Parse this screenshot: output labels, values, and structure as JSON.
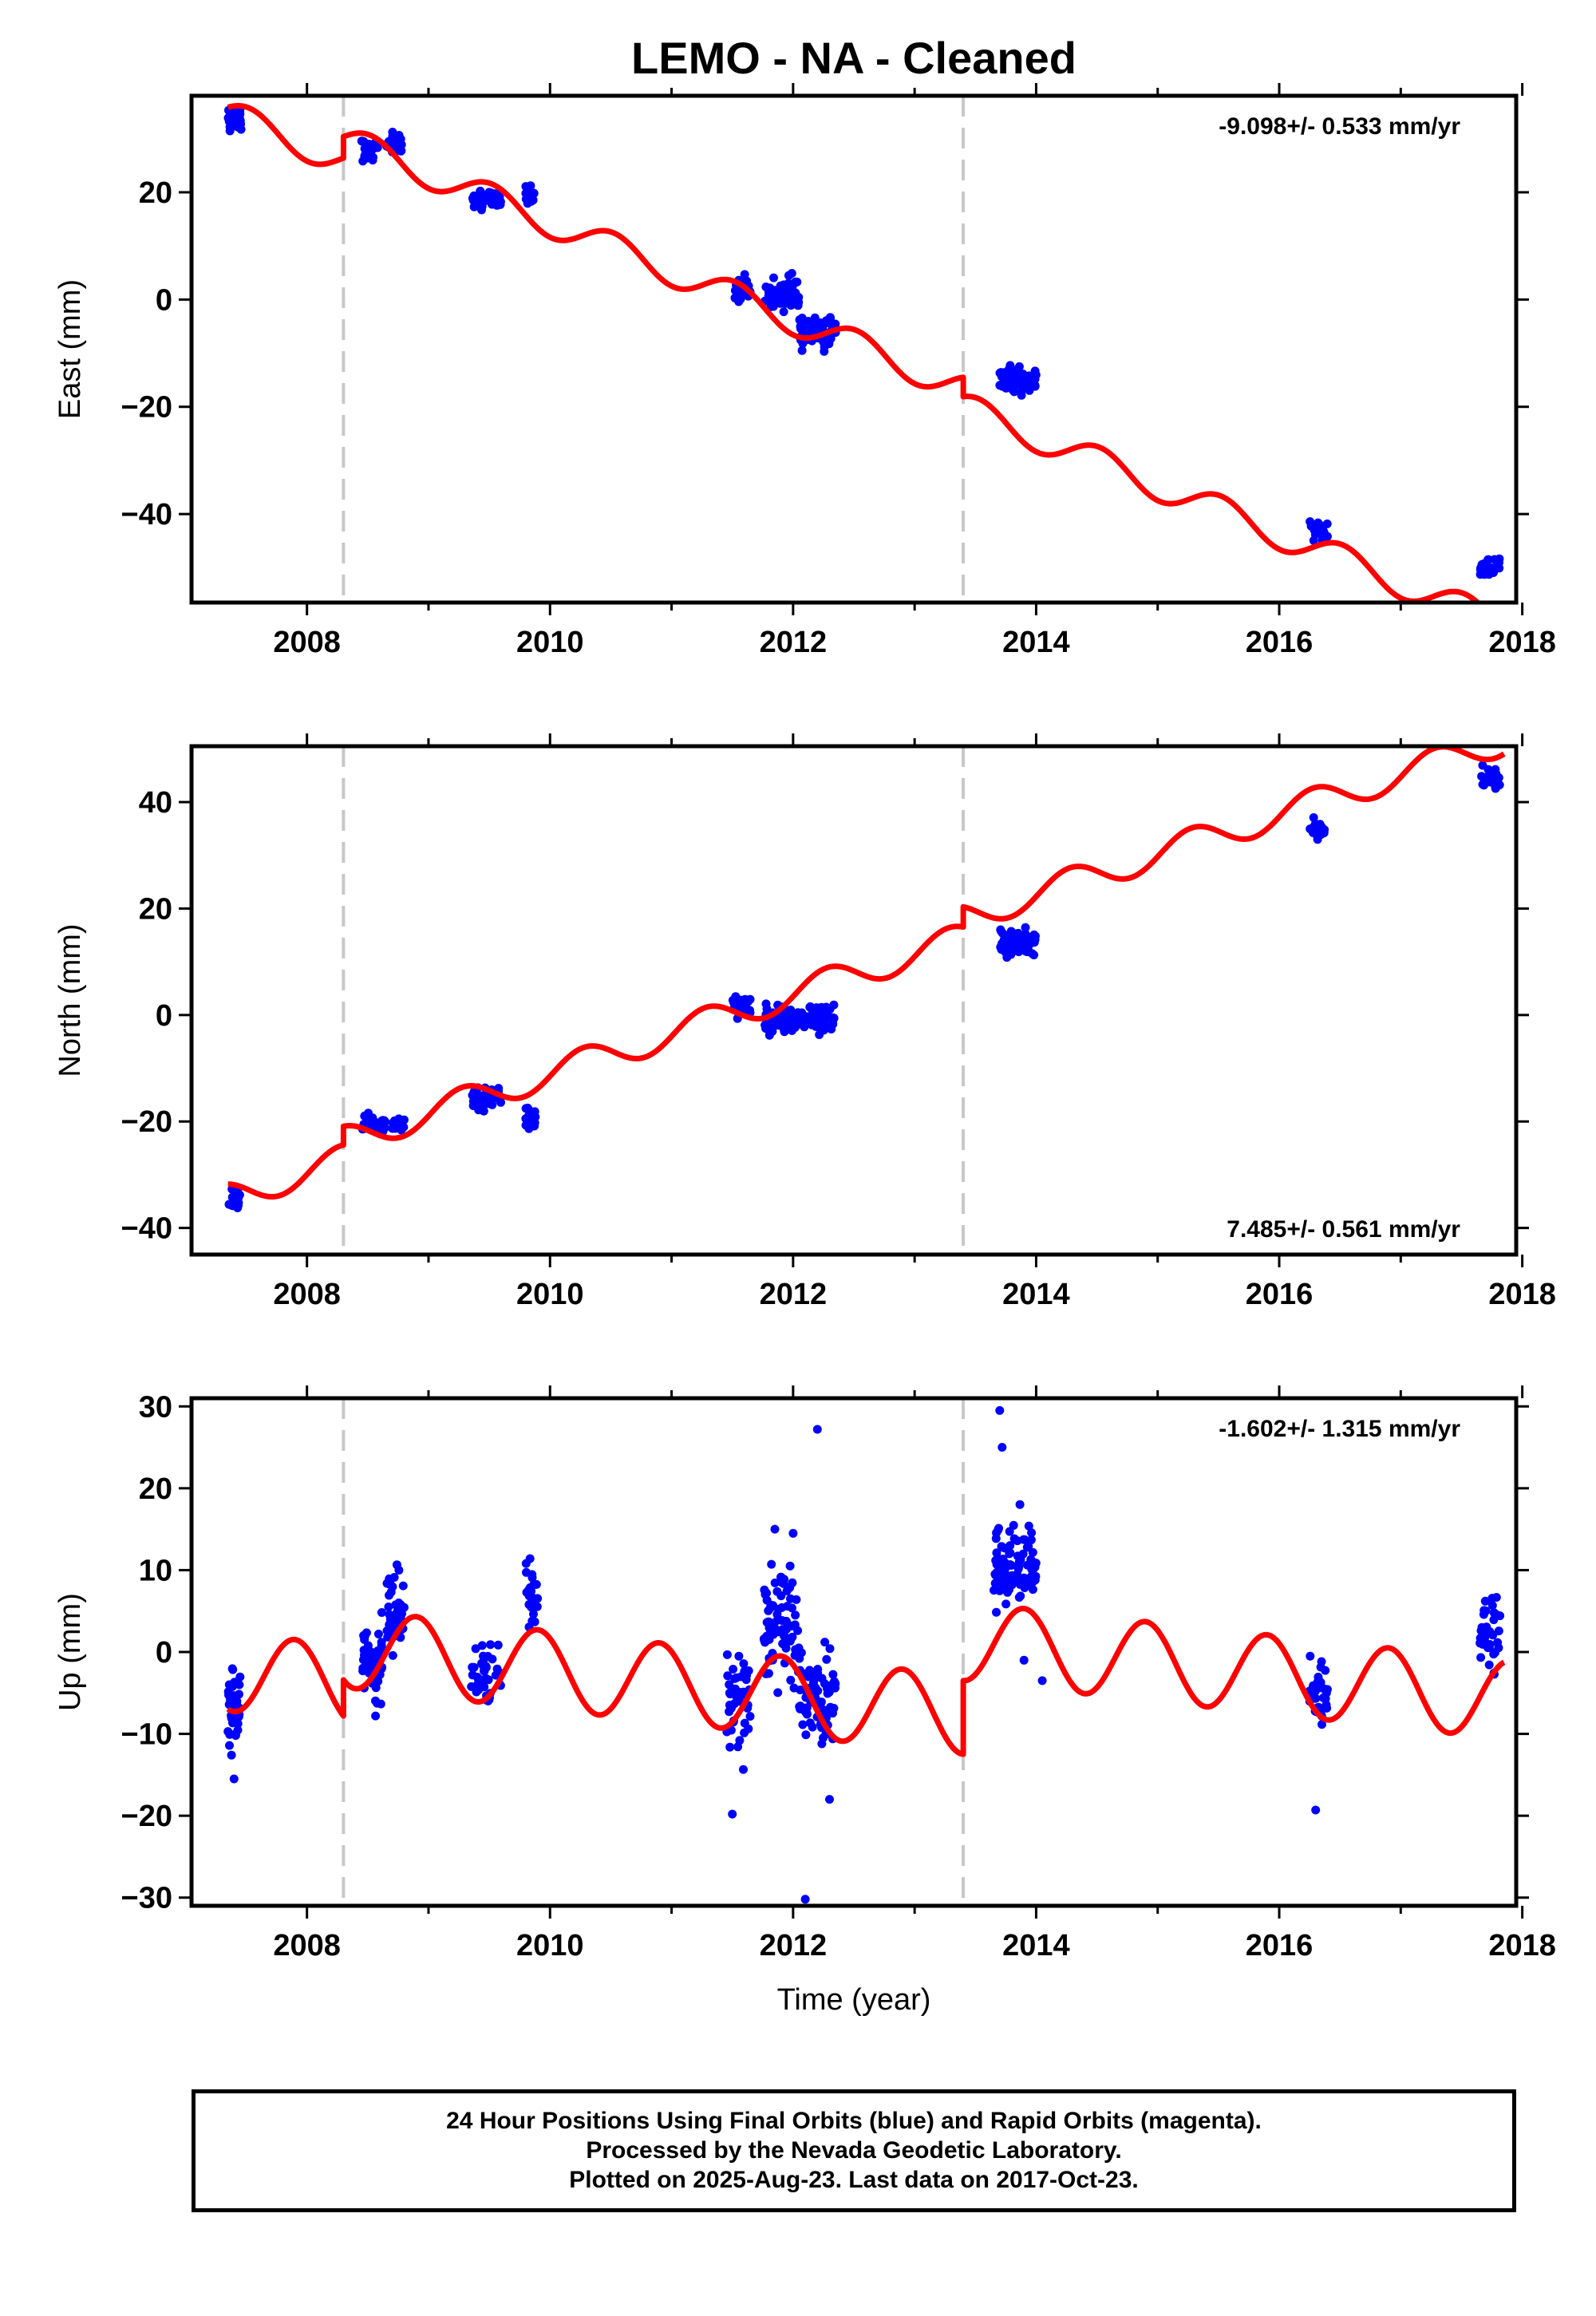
{
  "title": "LEMO  - NA - Cleaned",
  "footer": {
    "line1": "24 Hour Positions Using Final Orbits (blue) and Rapid Orbits (magenta).",
    "line2": "Processed by the Nevada Geodetic Laboratory.",
    "line3": "Plotted on 2025-Aug-23. Last data on 2017-Oct-23."
  },
  "colors": {
    "data": "#0000ff",
    "model": "#ff0000",
    "break": "#c8c8c8",
    "frame": "#000000"
  },
  "chart_data": [
    {
      "type": "scatter",
      "name": "east",
      "ylabel": "East (mm)",
      "xlabel": "",
      "xlim": [
        2007.05,
        2017.95
      ],
      "ylim": [
        -56.5,
        38
      ],
      "xticks": [
        2008,
        2010,
        2012,
        2014,
        2016,
        2018
      ],
      "yticks": [
        -40,
        -20,
        0,
        20
      ],
      "rate_text": "-9.098+/- 0.533 mm/yr",
      "rate_position": "top-right",
      "breaks": [
        2008.3,
        2013.4
      ],
      "model": {
        "rate": -9.098,
        "segments": [
          {
            "start": 2007.35,
            "end": 2008.3,
            "offset": 34.5
          },
          {
            "start": 2008.3,
            "end": 2013.4,
            "offset": 38.5
          },
          {
            "start": 2013.4,
            "end": 2017.85,
            "offset": 34.9
          }
        ],
        "t0": 2007.35,
        "annual_amp": 2.8,
        "phase": 0.27
      },
      "point_groups": [
        {
          "start": 2007.35,
          "end": 2007.46,
          "n": 30,
          "center": 33.5,
          "spread": 1.8
        },
        {
          "start": 2008.45,
          "end": 2008.6,
          "n": 26,
          "center": 28.0,
          "spread": 2.2
        },
        {
          "start": 2008.65,
          "end": 2008.78,
          "n": 28,
          "center": 29.0,
          "spread": 2.0
        },
        {
          "start": 2009.35,
          "end": 2009.6,
          "n": 40,
          "center": 18.5,
          "spread": 1.5
        },
        {
          "start": 2009.8,
          "end": 2009.88,
          "n": 18,
          "center": 19.5,
          "spread": 2.0
        },
        {
          "start": 2011.5,
          "end": 2011.65,
          "n": 32,
          "center": 2.0,
          "spread": 2.5
        },
        {
          "start": 2011.75,
          "end": 2012.05,
          "n": 60,
          "center": 1.0,
          "spread": 2.5
        },
        {
          "start": 2012.05,
          "end": 2012.35,
          "n": 60,
          "center": -6.0,
          "spread": 3.0
        },
        {
          "start": 2013.7,
          "end": 2014.0,
          "n": 80,
          "center": -15.0,
          "spread": 2.0
        },
        {
          "start": 2016.25,
          "end": 2016.4,
          "n": 24,
          "center": -43.0,
          "spread": 1.5
        },
        {
          "start": 2017.65,
          "end": 2017.82,
          "n": 30,
          "center": -50.0,
          "spread": 1.8
        }
      ]
    },
    {
      "type": "scatter",
      "name": "north",
      "ylabel": "North (mm)",
      "xlabel": "",
      "xlim": [
        2007.05,
        2017.95
      ],
      "ylim": [
        -45,
        50.5
      ],
      "xticks": [
        2008,
        2010,
        2012,
        2014,
        2016,
        2018
      ],
      "yticks": [
        -40,
        -20,
        0,
        20,
        40
      ],
      "rate_text": "7.485+/- 0.561 mm/yr",
      "rate_position": "bottom-right",
      "breaks": [
        2008.3,
        2013.4
      ],
      "model": {
        "rate": 7.485,
        "segments": [
          {
            "start": 2007.35,
            "end": 2008.3,
            "offset": -34.3
          },
          {
            "start": 2008.3,
            "end": 2013.4,
            "offset": -30.8
          },
          {
            "start": 2013.4,
            "end": 2017.85,
            "offset": -27.0
          }
        ],
        "t0": 2007.35,
        "annual_amp": 2.8,
        "phase": 0.03
      },
      "point_groups": [
        {
          "start": 2007.35,
          "end": 2007.45,
          "n": 20,
          "center": -34.5,
          "spread": 2.5
        },
        {
          "start": 2008.45,
          "end": 2008.65,
          "n": 36,
          "center": -20.5,
          "spread": 1.5
        },
        {
          "start": 2008.7,
          "end": 2008.8,
          "n": 20,
          "center": -20.5,
          "spread": 1.5
        },
        {
          "start": 2009.35,
          "end": 2009.6,
          "n": 36,
          "center": -15.5,
          "spread": 2.0
        },
        {
          "start": 2009.8,
          "end": 2009.88,
          "n": 16,
          "center": -19.5,
          "spread": 2.0
        },
        {
          "start": 2011.5,
          "end": 2011.65,
          "n": 26,
          "center": 1.5,
          "spread": 1.5
        },
        {
          "start": 2011.75,
          "end": 2012.35,
          "n": 110,
          "center": -1.0,
          "spread": 2.5
        },
        {
          "start": 2013.7,
          "end": 2014.0,
          "n": 70,
          "center": 13.5,
          "spread": 2.0
        },
        {
          "start": 2016.25,
          "end": 2016.4,
          "n": 24,
          "center": 35.0,
          "spread": 1.5
        },
        {
          "start": 2017.65,
          "end": 2017.82,
          "n": 30,
          "center": 44.5,
          "spread": 1.8
        }
      ]
    },
    {
      "type": "scatter",
      "name": "up",
      "ylabel": "Up (mm)",
      "xlabel": "Time (year)",
      "xlim": [
        2007.05,
        2017.95
      ],
      "ylim": [
        -31,
        31
      ],
      "xticks": [
        2008,
        2010,
        2012,
        2014,
        2016,
        2018
      ],
      "yticks": [
        -30,
        -20,
        -10,
        0,
        10,
        20,
        30
      ],
      "rate_text": "-1.602+/- 1.315 mm/yr",
      "rate_position": "top-right",
      "breaks": [
        2008.3,
        2013.4
      ],
      "model": {
        "rate": -1.602,
        "segments": [
          {
            "start": 2007.35,
            "end": 2008.3,
            "offset": -2.4
          },
          {
            "start": 2008.3,
            "end": 2013.4,
            "offset": 2.0
          },
          {
            "start": 2013.4,
            "end": 2017.85,
            "offset": 11.0
          }
        ],
        "t0": 2007.35,
        "annual_amp": 4.8,
        "phase": 0.65
      },
      "point_groups": [
        {
          "start": 2007.35,
          "end": 2007.45,
          "n": 40,
          "center": -7.0,
          "spread": 4.0
        },
        {
          "start": 2008.45,
          "end": 2008.62,
          "n": 50,
          "center": -1.0,
          "spread": 4.5
        },
        {
          "start": 2008.65,
          "end": 2008.8,
          "n": 40,
          "center": 5.0,
          "spread": 4.0
        },
        {
          "start": 2009.35,
          "end": 2009.6,
          "n": 40,
          "center": -3.0,
          "spread": 3.5
        },
        {
          "start": 2009.8,
          "end": 2009.9,
          "n": 24,
          "center": 7.0,
          "spread": 3.5
        },
        {
          "start": 2011.45,
          "end": 2011.65,
          "n": 50,
          "center": -6.0,
          "spread": 5.0
        },
        {
          "start": 2011.75,
          "end": 2012.05,
          "n": 80,
          "center": 3.0,
          "spread": 5.5
        },
        {
          "start": 2012.05,
          "end": 2012.35,
          "n": 80,
          "center": -5.0,
          "spread": 5.0
        },
        {
          "start": 2013.65,
          "end": 2014.0,
          "n": 90,
          "center": 10.5,
          "spread": 4.5
        },
        {
          "start": 2016.25,
          "end": 2016.4,
          "n": 30,
          "center": -5.0,
          "spread": 3.5
        },
        {
          "start": 2017.65,
          "end": 2017.82,
          "n": 36,
          "center": 2.0,
          "spread": 5.0
        }
      ],
      "extra_points": [
        [
          2007.4,
          -15.5
        ],
        [
          2011.5,
          -19.8
        ],
        [
          2012.1,
          -30.2
        ],
        [
          2012.2,
          27.2
        ],
        [
          2013.7,
          29.5
        ],
        [
          2013.72,
          25.0
        ],
        [
          2014.05,
          -3.5
        ],
        [
          2013.9,
          -1.0
        ],
        [
          2016.3,
          -19.3
        ],
        [
          2011.85,
          15.0
        ],
        [
          2012.0,
          14.5
        ],
        [
          2012.3,
          -18.0
        ]
      ]
    }
  ]
}
